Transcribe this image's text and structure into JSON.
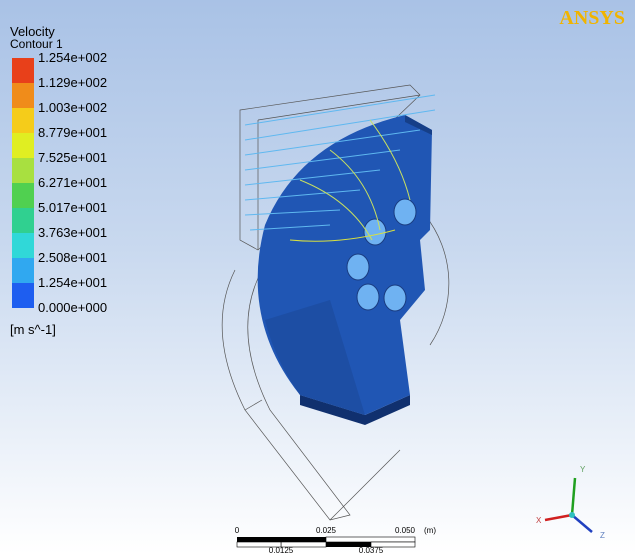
{
  "brand": "ANSYS",
  "legend": {
    "title": "Velocity",
    "subtitle": "Contour 1",
    "labels": [
      "1.254e+002",
      "1.129e+002",
      "1.003e+002",
      "8.779e+001",
      "7.525e+001",
      "6.271e+001",
      "5.017e+001",
      "3.763e+001",
      "2.508e+001",
      "1.254e+001",
      "0.000e+000"
    ],
    "unit": "[m s^-1]"
  },
  "scale_bar": {
    "top_labels": [
      "0",
      "0.025",
      "0.050",
      "(m)"
    ],
    "bottom_labels": [
      "0.0125",
      "0.0375"
    ]
  },
  "axes": {
    "x": "X",
    "y": "Y",
    "z": "Z"
  }
}
